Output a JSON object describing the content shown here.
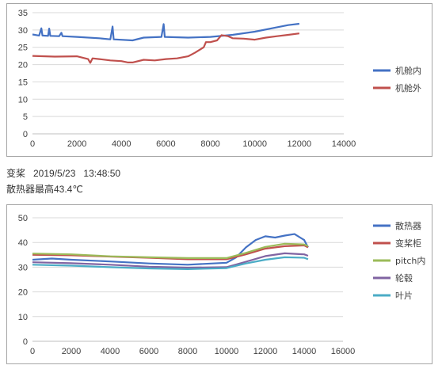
{
  "chart_data": [
    {
      "type": "line",
      "xlim": [
        0,
        14000
      ],
      "ylim": [
        0,
        35
      ],
      "xticks": [
        0,
        2000,
        4000,
        6000,
        8000,
        10000,
        12000,
        14000
      ],
      "yticks": [
        0,
        5,
        10,
        15,
        20,
        25,
        30,
        35
      ],
      "grid": true,
      "legend_position": "right",
      "series": [
        {
          "name": "机舱内",
          "color": "#4472c4",
          "points": [
            [
              0,
              28.7
            ],
            [
              300,
              28.4
            ],
            [
              400,
              30.5
            ],
            [
              450,
              28.4
            ],
            [
              700,
              28.3
            ],
            [
              750,
              30.4
            ],
            [
              800,
              28.3
            ],
            [
              1200,
              28.2
            ],
            [
              1300,
              29.2
            ],
            [
              1350,
              28.2
            ],
            [
              2000,
              28
            ],
            [
              3000,
              27.6
            ],
            [
              3500,
              27.3
            ],
            [
              3600,
              31
            ],
            [
              3650,
              27.3
            ],
            [
              4500,
              27
            ],
            [
              5000,
              27.8
            ],
            [
              5800,
              28
            ],
            [
              5900,
              31.7
            ],
            [
              5950,
              28
            ],
            [
              7000,
              27.8
            ],
            [
              8000,
              28
            ],
            [
              9000,
              28.6
            ],
            [
              10000,
              29.5
            ],
            [
              11000,
              30.8
            ],
            [
              11500,
              31.4
            ],
            [
              12000,
              31.8
            ]
          ]
        },
        {
          "name": "机舱外",
          "color": "#c0504d",
          "points": [
            [
              0,
              22.5
            ],
            [
              1000,
              22.3
            ],
            [
              2000,
              22.4
            ],
            [
              2500,
              21.6
            ],
            [
              2600,
              20.5
            ],
            [
              2700,
              21.8
            ],
            [
              3000,
              21.6
            ],
            [
              3500,
              21.2
            ],
            [
              4000,
              21
            ],
            [
              4300,
              20.6
            ],
            [
              4500,
              20.6
            ],
            [
              5000,
              21.4
            ],
            [
              5500,
              21.2
            ],
            [
              6000,
              21.6
            ],
            [
              6500,
              21.8
            ],
            [
              7000,
              22.4
            ],
            [
              7300,
              23.4
            ],
            [
              7700,
              25
            ],
            [
              7800,
              26.5
            ],
            [
              8000,
              26.5
            ],
            [
              8300,
              27
            ],
            [
              8500,
              28.5
            ],
            [
              8800,
              28.2
            ],
            [
              9000,
              27.6
            ],
            [
              9500,
              27.5
            ],
            [
              10000,
              27.2
            ],
            [
              10500,
              27.8
            ],
            [
              11000,
              28.2
            ],
            [
              11500,
              28.6
            ],
            [
              12000,
              29
            ]
          ]
        }
      ]
    },
    {
      "type": "line",
      "xlim": [
        0,
        16000
      ],
      "ylim": [
        0,
        50
      ],
      "xticks": [
        0,
        2000,
        4000,
        6000,
        8000,
        10000,
        12000,
        14000,
        16000
      ],
      "yticks": [
        0,
        10,
        20,
        30,
        40,
        50
      ],
      "grid": true,
      "legend_position": "right",
      "series": [
        {
          "name": "散热器",
          "color": "#4472c4",
          "points": [
            [
              0,
              33
            ],
            [
              1000,
              33.5
            ],
            [
              2000,
              33
            ],
            [
              4000,
              32.3
            ],
            [
              6000,
              31.5
            ],
            [
              8000,
              31
            ],
            [
              10000,
              31.8
            ],
            [
              10500,
              34
            ],
            [
              11000,
              38
            ],
            [
              11500,
              41
            ],
            [
              12000,
              42.5
            ],
            [
              12500,
              42
            ],
            [
              13000,
              42.8
            ],
            [
              13500,
              43.4
            ],
            [
              14000,
              41
            ],
            [
              14200,
              38
            ]
          ]
        },
        {
          "name": "变桨柜",
          "color": "#c0504d",
          "points": [
            [
              0,
              35
            ],
            [
              2000,
              34.8
            ],
            [
              4000,
              34.3
            ],
            [
              6000,
              33.8
            ],
            [
              8000,
              33.2
            ],
            [
              10000,
              33.2
            ],
            [
              11000,
              35.2
            ],
            [
              12000,
              37.5
            ],
            [
              13000,
              38.5
            ],
            [
              14000,
              38.8
            ],
            [
              14200,
              38
            ]
          ]
        },
        {
          "name": "pitch内",
          "color": "#9bbb59",
          "points": [
            [
              0,
              35.5
            ],
            [
              2000,
              35.2
            ],
            [
              4000,
              34.4
            ],
            [
              6000,
              34
            ],
            [
              8000,
              33.7
            ],
            [
              10000,
              33.7
            ],
            [
              11000,
              35.8
            ],
            [
              12000,
              38.2
            ],
            [
              13000,
              39.5
            ],
            [
              14000,
              39.2
            ],
            [
              14200,
              38.5
            ]
          ]
        },
        {
          "name": "轮毂",
          "color": "#8064a2",
          "points": [
            [
              0,
              32
            ],
            [
              2000,
              31.6
            ],
            [
              4000,
              31
            ],
            [
              6000,
              30.2
            ],
            [
              8000,
              29.8
            ],
            [
              10000,
              30
            ],
            [
              11000,
              32.2
            ],
            [
              12000,
              34.5
            ],
            [
              13000,
              35.6
            ],
            [
              14000,
              35.2
            ],
            [
              14200,
              34.6
            ]
          ]
        },
        {
          "name": "叶片",
          "color": "#4bacc6",
          "points": [
            [
              0,
              31
            ],
            [
              2000,
              30.6
            ],
            [
              4000,
              30
            ],
            [
              6000,
              29.5
            ],
            [
              8000,
              29.2
            ],
            [
              10000,
              29.6
            ],
            [
              11000,
              31.5
            ],
            [
              12000,
              33
            ],
            [
              13000,
              34
            ],
            [
              14000,
              33.8
            ],
            [
              14200,
              33.2
            ]
          ]
        }
      ]
    }
  ],
  "caption": {
    "line1": "变桨   2019/5/23   13:48:50",
    "line2": "散热器最高43.4℃"
  }
}
